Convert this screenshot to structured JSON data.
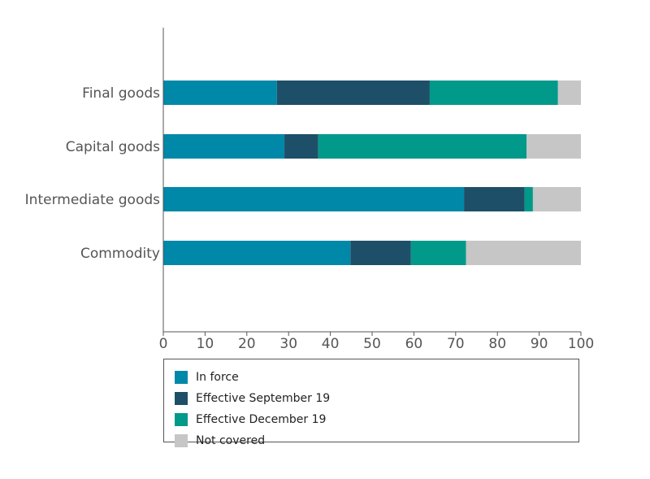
{
  "chart_data": {
    "type": "bar",
    "orientation": "horizontal",
    "stacked": true,
    "categories": [
      "Final goods",
      "Capital goods",
      "Intermediate goods",
      "Commodity"
    ],
    "series": [
      {
        "name": "In force",
        "color": "#0088a8",
        "values": [
          27.2,
          29.0,
          72.0,
          44.8
        ]
      },
      {
        "name": "Effective September 19",
        "color": "#1e4f68",
        "values": [
          36.6,
          8.1,
          14.5,
          14.5
        ]
      },
      {
        "name": "Effective December 19",
        "color": "#00998a",
        "values": [
          30.7,
          49.9,
          2.0,
          13.2
        ]
      },
      {
        "name": "Not covered",
        "color": "#c6c6c6",
        "values": [
          5.5,
          13.0,
          11.5,
          27.5
        ]
      }
    ],
    "xlim": [
      0,
      100
    ],
    "xticks": [
      "0",
      "10",
      "20",
      "30",
      "40",
      "50",
      "60",
      "70",
      "80",
      "90",
      "100"
    ],
    "xlabel": "",
    "ylabel": "",
    "title": "",
    "grid": false,
    "legend_position": "bottom"
  }
}
